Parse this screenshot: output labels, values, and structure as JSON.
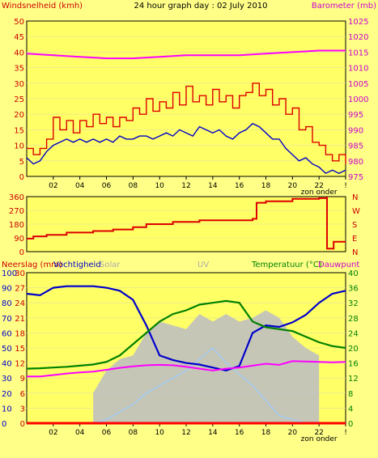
{
  "title": "24 hour graph day : 02 July 2010",
  "colors": {
    "background": "#ffff88",
    "plot": "#ffff66",
    "wind_avg": "#0000cc",
    "wind_gust": "#dd0000",
    "barometer": "#ff00ff",
    "direction": "#dd0000",
    "humidity": "#0000cc",
    "temperature": "#008000",
    "dewpoint": "#ff00ff",
    "solar": "#c0c0c0",
    "uv": "#99ccff",
    "rain": "#ff0000",
    "red_label": "#cc0000",
    "green_label": "#008000",
    "grey_label": "#aaaaaa",
    "label_magenta": "#cc00cc"
  },
  "chart_data": [
    {
      "type": "line",
      "labels": {
        "left": "Windsnelheid (kmh)",
        "right": "Barometer (mb)"
      },
      "x_ticks": [
        "02",
        "04",
        "06",
        "08",
        "10",
        "12",
        "14",
        "16",
        "18",
        "20",
        "22",
        "!"
      ],
      "sun_label": "zon onder",
      "y_left": {
        "min": 0,
        "max": 50,
        "ticks": [
          "0",
          "5",
          "10",
          "15",
          "20",
          "25",
          "30",
          "35",
          "40",
          "45",
          "50"
        ]
      },
      "y_right": {
        "min": 975,
        "max": 1025,
        "ticks": [
          "975",
          "980",
          "985",
          "990",
          "995",
          "1000",
          "1005",
          "1010",
          "1015",
          "1020",
          "1025"
        ]
      },
      "series": [
        {
          "key": "gust",
          "axis": "left",
          "step": true,
          "x": [
            0,
            0.5,
            1,
            1.5,
            2,
            2.5,
            3,
            3.5,
            4,
            4.5,
            5,
            5.5,
            6,
            6.5,
            7,
            7.5,
            8,
            8.5,
            9,
            9.5,
            10,
            10.5,
            11,
            11.5,
            12,
            12.5,
            13,
            13.5,
            14,
            14.5,
            15,
            15.5,
            16,
            16.5,
            17,
            17.5,
            18,
            18.5,
            19,
            19.5,
            20,
            20.5,
            21,
            21.5,
            22,
            22.5,
            23,
            23.5,
            24
          ],
          "y": [
            9,
            7,
            9,
            12,
            19,
            15,
            18,
            14,
            18,
            16,
            20,
            17,
            19,
            16,
            19,
            18,
            22,
            20,
            25,
            21,
            24,
            22,
            27,
            23,
            29,
            24,
            26,
            23,
            28,
            24,
            26,
            22,
            26,
            27,
            30,
            26,
            28,
            23,
            25,
            20,
            22,
            15,
            16,
            11,
            10,
            7,
            5,
            7,
            4
          ]
        },
        {
          "key": "average",
          "axis": "left",
          "step": false,
          "x": [
            0,
            0.5,
            1,
            1.5,
            2,
            2.5,
            3,
            3.5,
            4,
            4.5,
            5,
            5.5,
            6,
            6.5,
            7,
            7.5,
            8,
            8.5,
            9,
            9.5,
            10,
            10.5,
            11,
            11.5,
            12,
            12.5,
            13,
            13.5,
            14,
            14.5,
            15,
            15.5,
            16,
            16.5,
            17,
            17.5,
            18,
            18.5,
            19,
            19.5,
            20,
            20.5,
            21,
            21.5,
            22,
            22.5,
            23,
            23.5,
            24
          ],
          "y": [
            6,
            4,
            5,
            8,
            10,
            11,
            12,
            11,
            12,
            11,
            12,
            11,
            12,
            11,
            13,
            12,
            12,
            13,
            13,
            12,
            13,
            14,
            13,
            15,
            14,
            13,
            16,
            15,
            14,
            15,
            13,
            12,
            14,
            15,
            17,
            16,
            14,
            12,
            12,
            9,
            7,
            5,
            6,
            4,
            3,
            1,
            2,
            1,
            2
          ]
        },
        {
          "key": "pressure",
          "axis": "right",
          "step": false,
          "x": [
            0,
            2,
            4,
            6,
            8,
            10,
            12,
            14,
            16,
            18,
            20,
            22,
            24
          ],
          "y": [
            1014.5,
            1014,
            1013.5,
            1013,
            1013,
            1013.5,
            1014,
            1014,
            1014,
            1014.5,
            1015,
            1015.5,
            1015.5
          ]
        }
      ]
    },
    {
      "type": "line",
      "labels": {
        "right_compass": [
          "N",
          "W",
          "S",
          "E",
          "N"
        ]
      },
      "y_left": {
        "min": 0,
        "max": 360,
        "ticks": [
          "0",
          "90",
          "180",
          "270",
          "360"
        ]
      },
      "series": [
        {
          "key": "direction",
          "step": true,
          "x": [
            0,
            0.5,
            1.5,
            3,
            5,
            6.5,
            8,
            9,
            11,
            13,
            15,
            17,
            17.3,
            18,
            20,
            22,
            22.6,
            22.6,
            23.1,
            23.1,
            24
          ],
          "y": [
            85,
            100,
            110,
            125,
            135,
            145,
            160,
            180,
            195,
            205,
            205,
            215,
            320,
            330,
            345,
            350,
            360,
            20,
            20,
            65,
            65
          ]
        }
      ]
    },
    {
      "type": "line",
      "labels": {
        "rain": "Neerslag (mm)",
        "humidity": "Vochtigheid",
        "solar": "Solar",
        "uv": "UV",
        "temperature": "Temperatuur (°C)",
        "dewpoint": "Dauwpunt"
      },
      "x_ticks": [
        "02",
        "04",
        "06",
        "08",
        "10",
        "12",
        "14",
        "16",
        "18",
        "20",
        "22",
        "!"
      ],
      "sun_label": "zon onder",
      "y_humidity": {
        "min": 0,
        "max": 100,
        "ticks": [
          "0",
          "10",
          "20",
          "30",
          "40",
          "50",
          "60",
          "70",
          "80",
          "90",
          "100"
        ]
      },
      "y_rain": {
        "min": 0,
        "max": 30,
        "ticks": [
          "0",
          "3",
          "6",
          "9",
          "12",
          "15",
          "18",
          "21",
          "24",
          "27",
          "30"
        ]
      },
      "y_temp": {
        "min": 0,
        "max": 40,
        "ticks": [
          "0",
          "4",
          "8",
          "12",
          "16",
          "20",
          "24",
          "28",
          "32",
          "36",
          "40"
        ]
      },
      "series": [
        {
          "key": "solar",
          "kind": "area",
          "axis": "temp",
          "x": [
            0,
            5,
            5,
            6,
            7,
            8,
            9,
            10,
            11,
            12,
            13,
            14,
            15,
            16,
            17,
            18,
            19,
            20,
            21,
            22,
            22,
            24
          ],
          "y": [
            0,
            0,
            8,
            14,
            17,
            18,
            24,
            27,
            26,
            25,
            29,
            27,
            29,
            27,
            28,
            30,
            28,
            23,
            20,
            18,
            0,
            0
          ]
        },
        {
          "key": "uv",
          "axis": "temp",
          "x": [
            5,
            6,
            7,
            8,
            9,
            10,
            11,
            12,
            13,
            14,
            15,
            16,
            17,
            18,
            19,
            20,
            21
          ],
          "y": [
            0,
            1,
            3,
            5,
            8,
            10,
            12,
            14,
            17,
            20,
            16,
            13,
            10,
            6,
            2,
            1,
            0
          ]
        },
        {
          "key": "humidity",
          "axis": "humidity",
          "x": [
            0,
            1,
            2,
            3,
            4,
            5,
            6,
            7,
            8,
            9,
            10,
            11,
            12,
            13,
            14,
            15,
            16,
            17,
            18,
            19,
            20,
            21,
            22,
            23,
            24
          ],
          "y": [
            86,
            85,
            90,
            91,
            91,
            91,
            90,
            88,
            82,
            65,
            45,
            42,
            40,
            39,
            37,
            35,
            38,
            60,
            65,
            64,
            67,
            72,
            80,
            86,
            88
          ]
        },
        {
          "key": "temperature",
          "axis": "temp",
          "x": [
            0,
            1,
            2,
            3,
            4,
            5,
            6,
            7,
            8,
            9,
            10,
            11,
            12,
            13,
            14,
            15,
            16,
            17,
            18,
            19,
            20,
            21,
            22,
            23,
            24
          ],
          "y": [
            14.5,
            14.6,
            14.8,
            15,
            15.3,
            15.6,
            16.3,
            18,
            21,
            24,
            27,
            29,
            30,
            31.5,
            32,
            32.5,
            32,
            27,
            25.5,
            25,
            24.5,
            23,
            21.5,
            20.5,
            20
          ]
        },
        {
          "key": "dewpoint",
          "axis": "temp",
          "x": [
            0,
            1,
            2,
            3,
            4,
            5,
            6,
            7,
            8,
            9,
            10,
            11,
            12,
            13,
            14,
            15,
            16,
            17,
            18,
            19,
            20,
            21,
            22,
            23,
            24
          ],
          "y": [
            12.4,
            12.4,
            12.8,
            13.2,
            13.5,
            13.7,
            14.2,
            14.7,
            15.1,
            15.4,
            15.5,
            15.4,
            15,
            14.5,
            14,
            14.5,
            14.8,
            15.3,
            15.8,
            15.5,
            16.5,
            16.4,
            16.3,
            16.2,
            16.3
          ]
        },
        {
          "key": "rain",
          "axis": "rain",
          "x": [
            0,
            24
          ],
          "y": [
            0,
            0
          ]
        }
      ]
    }
  ]
}
